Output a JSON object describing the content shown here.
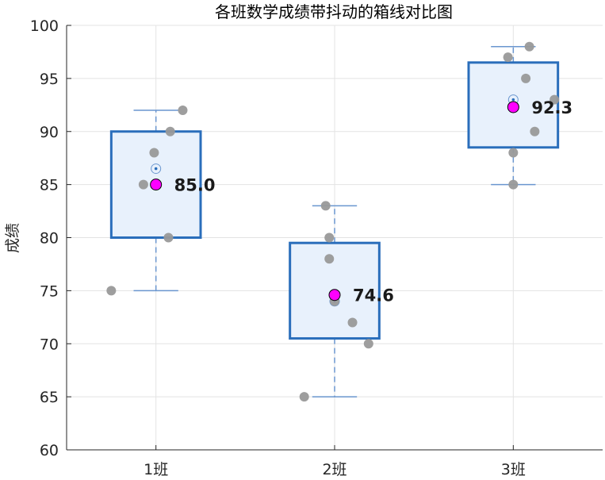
{
  "chart_data": {
    "type": "box",
    "title": "各班数学成绩带抖动的箱线对比图",
    "xlabel": "",
    "ylabel": "成绩",
    "ylim": [
      60,
      100
    ],
    "yticks": [
      60,
      65,
      70,
      75,
      80,
      85,
      90,
      95,
      100
    ],
    "grid": true,
    "categories": [
      "1班",
      "2班",
      "3班"
    ],
    "boxes": [
      {
        "q1": 80,
        "median": 86.5,
        "q3": 90,
        "whisker_low": 75,
        "whisker_high": 92
      },
      {
        "q1": 70.5,
        "median": 74,
        "q3": 79.5,
        "whisker_low": 65,
        "whisker_high": 83
      },
      {
        "q1": 88.5,
        "median": 93,
        "q3": 96.5,
        "whisker_low": 85,
        "whisker_high": 98
      }
    ],
    "points": [
      [
        {
          "x": 0.75,
          "y": 75
        },
        {
          "x": 0.93,
          "y": 85
        },
        {
          "x": 0.99,
          "y": 88
        },
        {
          "x": 1.07,
          "y": 80
        },
        {
          "x": 1.08,
          "y": 90
        },
        {
          "x": 1.15,
          "y": 92
        }
      ],
      [
        {
          "x": 1.83,
          "y": 65
        },
        {
          "x": 1.95,
          "y": 83
        },
        {
          "x": 1.97,
          "y": 80
        },
        {
          "x": 1.97,
          "y": 78
        },
        {
          "x": 2.0,
          "y": 74
        },
        {
          "x": 2.1,
          "y": 72
        },
        {
          "x": 2.19,
          "y": 70
        }
      ],
      [
        {
          "x": 2.97,
          "y": 97
        },
        {
          "x": 3.0,
          "y": 85
        },
        {
          "x": 3.0,
          "y": 88
        },
        {
          "x": 3.07,
          "y": 95
        },
        {
          "x": 3.09,
          "y": 98
        },
        {
          "x": 3.12,
          "y": 90
        },
        {
          "x": 3.23,
          "y": 93
        }
      ]
    ],
    "means": [
      85.0,
      74.6,
      92.3
    ],
    "mean_labels": [
      "85.0",
      "74.6",
      "92.3"
    ],
    "colors": {
      "box_edge": "#2a6ebb",
      "box_fill": "#e8f1fc",
      "whisker": "#6a96cf",
      "point": "#999999",
      "mean_marker": "#ff00ff",
      "grid": "#e3e3e3",
      "axis": "#262626"
    }
  }
}
